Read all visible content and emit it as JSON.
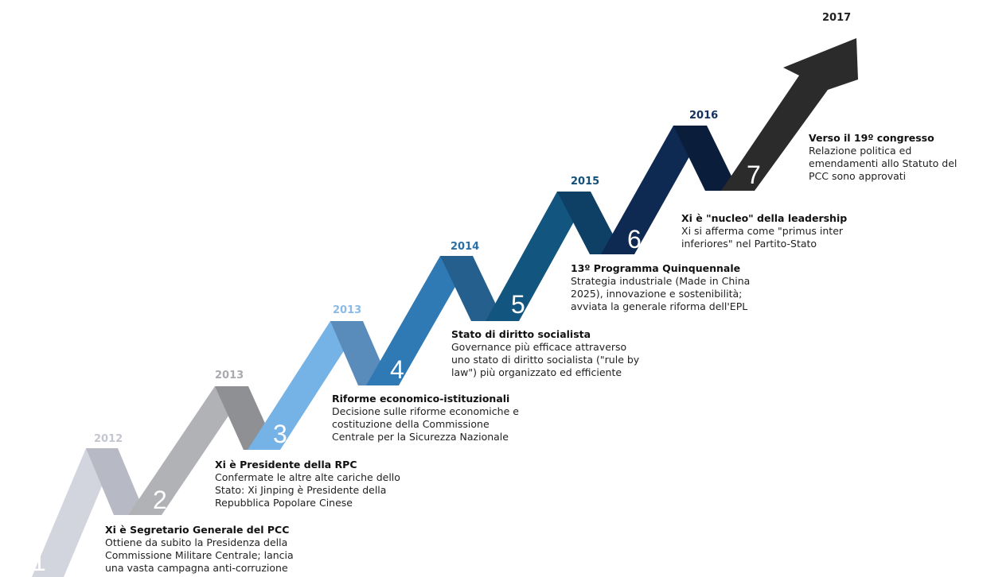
{
  "steps": [
    {
      "number": "1",
      "year": "2012",
      "title": "Xi è Segretario Generale del PCC",
      "lines": [
        "Ottiene da subito la Presidenza della",
        "Commissione Militare Centrale; lancia",
        "una vasta campagna anti-corruzione"
      ],
      "colors": {
        "face": "#d2d4de",
        "fold": "#b7b9c4",
        "year": "#c5c7d0"
      }
    },
    {
      "number": "2",
      "year": "2013",
      "title": "Xi è Presidente della RPC",
      "lines": [
        "Confermate le altre alte cariche dello",
        "Stato: Xi Jinping è Presidente della",
        "Repubblica Popolare Cinese"
      ],
      "colors": {
        "face": "#b1b2b6",
        "fold": "#8f9094",
        "year": "#a9aaae"
      }
    },
    {
      "number": "3",
      "year": "2013",
      "title": "Riforme economico-istituzionali",
      "lines": [
        "Decisione sulle riforme economiche e",
        "costituzione della Commissione",
        "Centrale per la Sicurezza Nazionale"
      ],
      "colors": {
        "face": "#75b2e6",
        "fold": "#5a8cbb",
        "year": "#8bbbe5"
      }
    },
    {
      "number": "4",
      "year": "2014",
      "title": "Stato di diritto socialista",
      "lines": [
        "Governance più efficace attraverso",
        "uno stato di diritto socialista (\"rule by",
        "law\") più organizzato ed efficiente"
      ],
      "colors": {
        "face": "#2f7ab5",
        "fold": "#245f8e",
        "year": "#2c6fa5"
      }
    },
    {
      "number": "5",
      "year": "2015",
      "title": "13º Programma Quinquennale",
      "lines": [
        "Strategia industriale (Made in China",
        "2025), innovazione e sostenibilità;",
        "avviata la generale riforma dell'EPL"
      ],
      "colors": {
        "face": "#12557f",
        "fold": "#0d4064",
        "year": "#134f78"
      }
    },
    {
      "number": "6",
      "year": "2016",
      "title": "Xi è \"nucleo\" della leadership",
      "lines": [
        "Xi si afferma come \"primus inter",
        "inferiores\" nel Partito-Stato"
      ],
      "colors": {
        "face": "#0f2a52",
        "fold": "#0a1d3a",
        "year": "#12305c"
      }
    },
    {
      "number": "7",
      "year": "2017",
      "title": "Verso il 19º congresso",
      "lines": [
        "Relazione politica ed",
        "emendamenti allo Statuto del",
        "PCC sono approvati"
      ],
      "colors": {
        "face": "#2b2b2b",
        "fold": "#161616",
        "year": "#222222"
      }
    }
  ]
}
